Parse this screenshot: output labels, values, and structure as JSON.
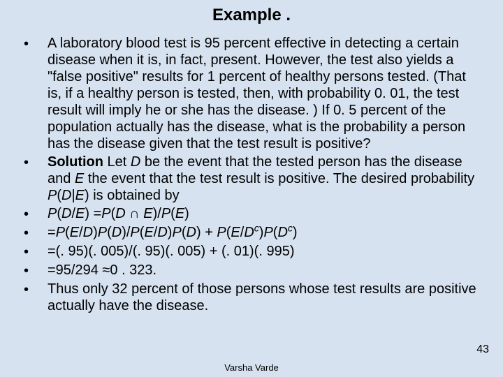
{
  "title": "Example .",
  "bullets": [
    {
      "html": "A laboratory blood test is 95 percent effective in detecting a certain disease when it is, in fact, present. However, the test also yields a \"false positive\" results for 1 percent of healthy persons tested. (That is, if a healthy person is tested, then, with probability 0. 01, the test result will imply he or she has the disease. ) If 0. 5 percent of the population actually has the disease, what is the probability a person has the disease given that the test result is positive?"
    },
    {
      "html": "<span class='bold'>Solution</span> Let <span class='italic'>D</span> be the event that the tested person has the disease and <span class='italic'>E</span> the event that the test result is positive. The desired probability <span class='italic'>P</span>(<span class='italic'>D</span>|<span class='italic'>E</span>) is obtained by"
    },
    {
      "html": "<span class='italic'>P</span>(<span class='italic'>D</span>/<span class='italic'>E</span>) =<span class='italic'>P</span>(<span class='italic'>D</span> ∩ <span class='italic'>E</span>)/<span class='italic'>P</span>(<span class='italic'>E</span>)"
    },
    {
      "html": "=<span class='italic'>P</span>(<span class='italic'>E</span>/<span class='italic'>D</span>)<span class='italic'>P</span>(<span class='italic'>D</span>)/<span class='italic'>P</span>(<span class='italic'>E</span>/<span class='italic'>D</span>)<span class='italic'>P</span>(<span class='italic'>D</span>) + <span class='italic'>P</span>(<span class='italic'>E</span>/<span class='italic'>D<span class='sup'>c</span></span>)<span class='italic'>P</span>(<span class='italic'>D<span class='sup'>c</span></span>)"
    },
    {
      "html": "=(. 95)(. 005)/(. 95)(. 005) + (. 01)(. 995)"
    },
    {
      "html": "=95/294 ≈0 . 323."
    },
    {
      "html": "Thus only 32 percent of those persons whose test results are positive actually have the disease."
    }
  ],
  "footer": "Varsha Varde",
  "pagenum": "43",
  "colors": {
    "background": "#d6e2f0",
    "text": "#000000"
  }
}
